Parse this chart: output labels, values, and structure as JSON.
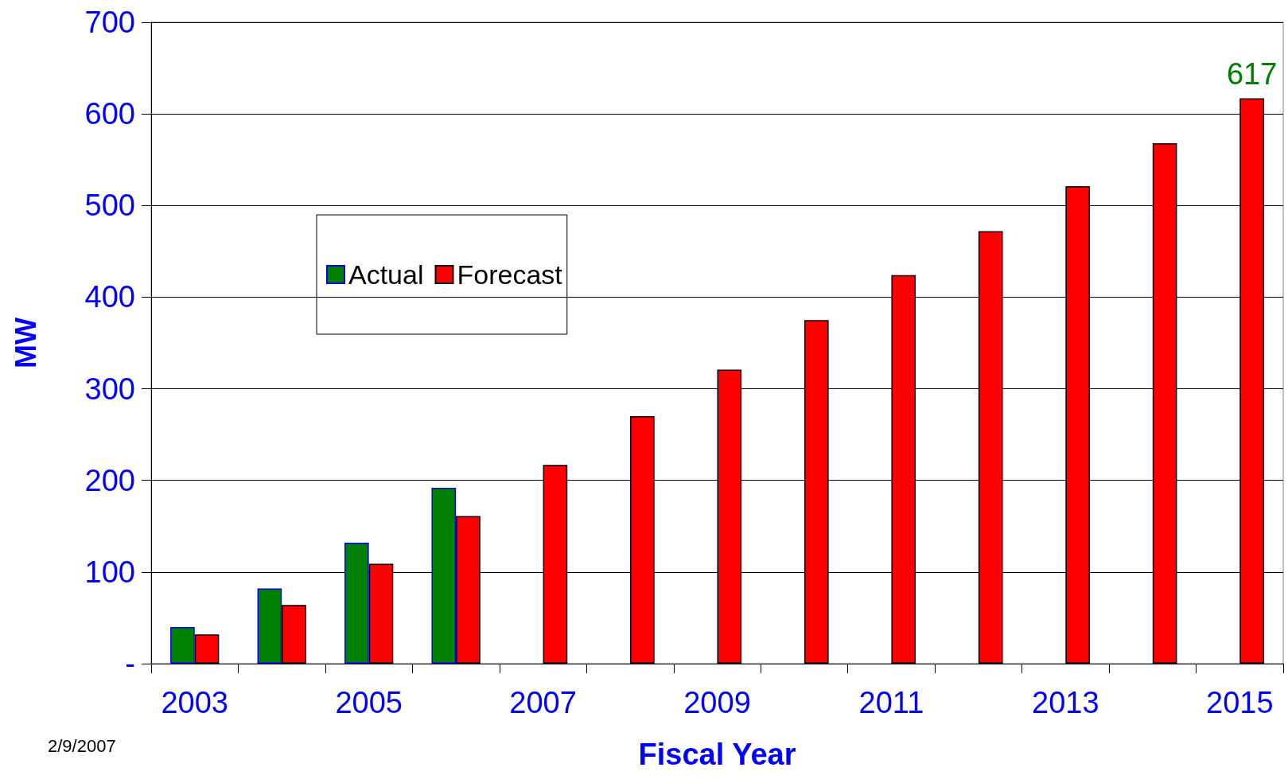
{
  "chart_data": {
    "type": "bar",
    "xlabel": "Fiscal Year",
    "ylabel": "MW",
    "categories": [
      "2003",
      null,
      "2005",
      null,
      "2007",
      null,
      "2009",
      null,
      "2011",
      null,
      "2013",
      null,
      "2015"
    ],
    "series": [
      {
        "name": "Actual",
        "color": "#008000",
        "values": [
          40,
          82,
          132,
          192,
          null,
          null,
          null,
          null,
          null,
          null,
          null,
          null,
          null
        ]
      },
      {
        "name": "Forecast",
        "color": "#ff0000",
        "values": [
          32,
          64,
          109,
          161,
          217,
          270,
          321,
          375,
          424,
          472,
          521,
          568,
          617
        ],
        "value_labels": [
          null,
          null,
          null,
          null,
          null,
          null,
          null,
          null,
          null,
          null,
          null,
          null,
          "617"
        ]
      }
    ],
    "ylim": [
      0,
      700
    ],
    "yticks": [
      {
        "value": 0,
        "label": "-"
      },
      100,
      200,
      300,
      400,
      500,
      600,
      700
    ],
    "grid": "y",
    "legend": "top left",
    "annotations": [
      "2/9/2007"
    ]
  }
}
